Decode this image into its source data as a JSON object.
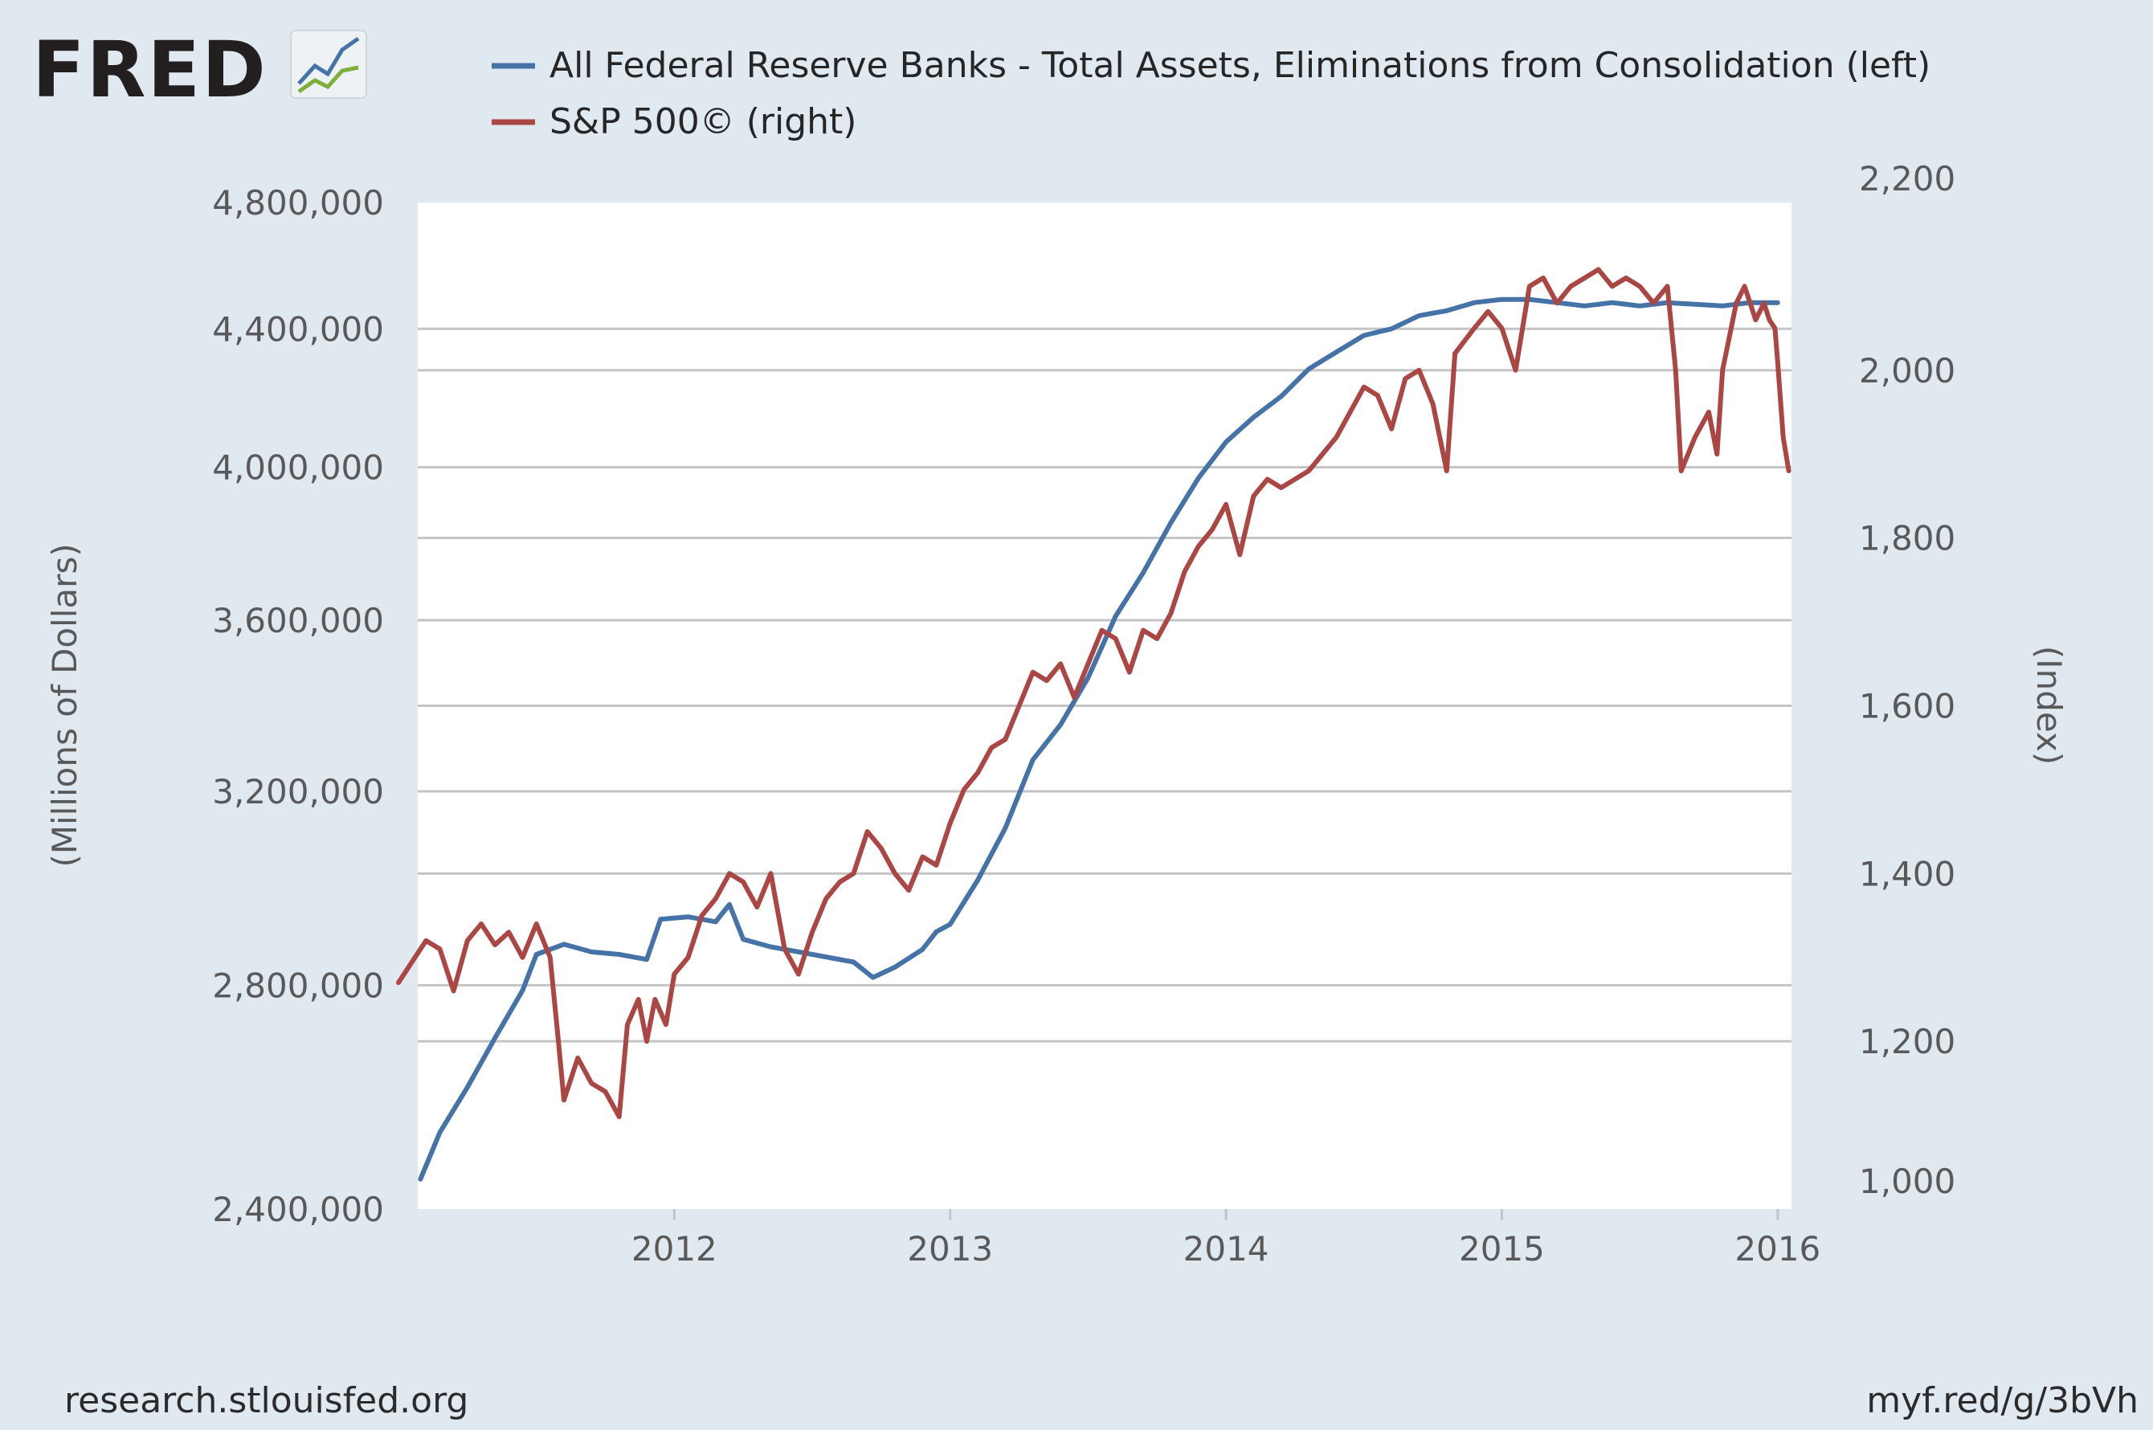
{
  "logo": {
    "text": "FRED"
  },
  "footer": {
    "source": "research.stlouisfed.org",
    "short_url": "myf.red/g/3bVh"
  },
  "colors": {
    "background": "#e1e9f0",
    "plot_bg": "#ffffff",
    "grid": "#c4c4c4",
    "series_assets": "#4572a7",
    "series_sp500": "#aa4643",
    "logo_dark": "#231f20"
  },
  "chart_data": {
    "type": "line",
    "title": "",
    "xlabel": "",
    "ylabel_left": "(Millions of Dollars)",
    "ylabel_right": "(Index)",
    "x_tick_labels": [
      "2012",
      "2013",
      "2014",
      "2015",
      "2016"
    ],
    "x_tick_years": [
      2012,
      2013,
      2014,
      2015,
      2016
    ],
    "xlim": [
      2011.07,
      2016.05
    ],
    "left_axis": {
      "ticks": [
        2400000,
        2800000,
        3200000,
        3600000,
        4000000,
        4400000,
        4800000
      ],
      "tick_labels": [
        "2,400,000",
        "2,800,000",
        "3,200,000",
        "3,600,000",
        "4,000,000",
        "4,400,000",
        "4,800,000"
      ],
      "scale": "log",
      "range": [
        2400000,
        4800000
      ]
    },
    "right_axis": {
      "ticks": [
        1000,
        1200,
        1400,
        1600,
        1800,
        2000,
        2200
      ],
      "tick_labels": [
        "1,000",
        "1,200",
        "1,400",
        "1,600",
        "1,800",
        "2,000",
        "2,200"
      ],
      "scale": "linear",
      "range": [
        1000,
        2200
      ]
    },
    "series": [
      {
        "name": "All Federal Reserve Banks - Total Assets, Eliminations from Consolidation (left)",
        "axis": "left",
        "points": [
          [
            2011.08,
            2450000
          ],
          [
            2011.15,
            2530000
          ],
          [
            2011.25,
            2610000
          ],
          [
            2011.35,
            2700000
          ],
          [
            2011.45,
            2790000
          ],
          [
            2011.5,
            2860000
          ],
          [
            2011.6,
            2880000
          ],
          [
            2011.7,
            2865000
          ],
          [
            2011.8,
            2860000
          ],
          [
            2011.9,
            2850000
          ],
          [
            2011.95,
            2930000
          ],
          [
            2012.05,
            2935000
          ],
          [
            2012.15,
            2925000
          ],
          [
            2012.2,
            2960000
          ],
          [
            2012.25,
            2890000
          ],
          [
            2012.35,
            2875000
          ],
          [
            2012.5,
            2860000
          ],
          [
            2012.65,
            2845000
          ],
          [
            2012.72,
            2815000
          ],
          [
            2012.8,
            2835000
          ],
          [
            2012.9,
            2870000
          ],
          [
            2012.95,
            2905000
          ],
          [
            2013.0,
            2920000
          ],
          [
            2013.1,
            3010000
          ],
          [
            2013.2,
            3120000
          ],
          [
            2013.3,
            3270000
          ],
          [
            2013.4,
            3350000
          ],
          [
            2013.5,
            3460000
          ],
          [
            2013.6,
            3610000
          ],
          [
            2013.7,
            3720000
          ],
          [
            2013.8,
            3850000
          ],
          [
            2013.9,
            3970000
          ],
          [
            2014.0,
            4070000
          ],
          [
            2014.1,
            4140000
          ],
          [
            2014.2,
            4200000
          ],
          [
            2014.3,
            4280000
          ],
          [
            2014.4,
            4330000
          ],
          [
            2014.5,
            4380000
          ],
          [
            2014.6,
            4400000
          ],
          [
            2014.7,
            4440000
          ],
          [
            2014.8,
            4455000
          ],
          [
            2014.9,
            4480000
          ],
          [
            2015.0,
            4490000
          ],
          [
            2015.1,
            4490000
          ],
          [
            2015.2,
            4480000
          ],
          [
            2015.3,
            4470000
          ],
          [
            2015.4,
            4480000
          ],
          [
            2015.5,
            4470000
          ],
          [
            2015.6,
            4480000
          ],
          [
            2015.7,
            4475000
          ],
          [
            2015.8,
            4470000
          ],
          [
            2015.9,
            4480000
          ],
          [
            2016.0,
            4480000
          ]
        ]
      },
      {
        "name": "S&P 500© (right)",
        "axis": "right",
        "points": [
          [
            2011.0,
            1270
          ],
          [
            2011.05,
            1295
          ],
          [
            2011.1,
            1320
          ],
          [
            2011.15,
            1310
          ],
          [
            2011.2,
            1260
          ],
          [
            2011.25,
            1320
          ],
          [
            2011.3,
            1340
          ],
          [
            2011.35,
            1315
          ],
          [
            2011.4,
            1330
          ],
          [
            2011.45,
            1300
          ],
          [
            2011.5,
            1340
          ],
          [
            2011.55,
            1300
          ],
          [
            2011.58,
            1200
          ],
          [
            2011.6,
            1130
          ],
          [
            2011.65,
            1180
          ],
          [
            2011.7,
            1150
          ],
          [
            2011.75,
            1140
          ],
          [
            2011.8,
            1110
          ],
          [
            2011.83,
            1220
          ],
          [
            2011.87,
            1250
          ],
          [
            2011.9,
            1200
          ],
          [
            2011.93,
            1250
          ],
          [
            2011.97,
            1220
          ],
          [
            2012.0,
            1280
          ],
          [
            2012.05,
            1300
          ],
          [
            2012.1,
            1350
          ],
          [
            2012.15,
            1370
          ],
          [
            2012.2,
            1400
          ],
          [
            2012.25,
            1390
          ],
          [
            2012.3,
            1360
          ],
          [
            2012.35,
            1400
          ],
          [
            2012.4,
            1310
          ],
          [
            2012.45,
            1280
          ],
          [
            2012.5,
            1330
          ],
          [
            2012.55,
            1370
          ],
          [
            2012.6,
            1390
          ],
          [
            2012.65,
            1400
          ],
          [
            2012.7,
            1450
          ],
          [
            2012.75,
            1430
          ],
          [
            2012.8,
            1400
          ],
          [
            2012.85,
            1380
          ],
          [
            2012.9,
            1420
          ],
          [
            2012.95,
            1410
          ],
          [
            2013.0,
            1460
          ],
          [
            2013.05,
            1500
          ],
          [
            2013.1,
            1520
          ],
          [
            2013.15,
            1550
          ],
          [
            2013.2,
            1560
          ],
          [
            2013.25,
            1600
          ],
          [
            2013.3,
            1640
          ],
          [
            2013.35,
            1630
          ],
          [
            2013.4,
            1650
          ],
          [
            2013.45,
            1610
          ],
          [
            2013.5,
            1650
          ],
          [
            2013.55,
            1690
          ],
          [
            2013.6,
            1680
          ],
          [
            2013.65,
            1640
          ],
          [
            2013.7,
            1690
          ],
          [
            2013.75,
            1680
          ],
          [
            2013.8,
            1710
          ],
          [
            2013.85,
            1760
          ],
          [
            2013.9,
            1790
          ],
          [
            2013.95,
            1810
          ],
          [
            2014.0,
            1840
          ],
          [
            2014.05,
            1780
          ],
          [
            2014.1,
            1850
          ],
          [
            2014.15,
            1870
          ],
          [
            2014.2,
            1860
          ],
          [
            2014.3,
            1880
          ],
          [
            2014.4,
            1920
          ],
          [
            2014.45,
            1950
          ],
          [
            2014.5,
            1980
          ],
          [
            2014.55,
            1970
          ],
          [
            2014.6,
            1930
          ],
          [
            2014.65,
            1990
          ],
          [
            2014.7,
            2000
          ],
          [
            2014.75,
            1960
          ],
          [
            2014.8,
            1880
          ],
          [
            2014.83,
            2020
          ],
          [
            2014.9,
            2050
          ],
          [
            2014.95,
            2070
          ],
          [
            2015.0,
            2050
          ],
          [
            2015.05,
            2000
          ],
          [
            2015.1,
            2100
          ],
          [
            2015.15,
            2110
          ],
          [
            2015.2,
            2080
          ],
          [
            2015.25,
            2100
          ],
          [
            2015.3,
            2110
          ],
          [
            2015.35,
            2120
          ],
          [
            2015.4,
            2100
          ],
          [
            2015.45,
            2110
          ],
          [
            2015.5,
            2100
          ],
          [
            2015.55,
            2080
          ],
          [
            2015.6,
            2100
          ],
          [
            2015.63,
            2000
          ],
          [
            2015.65,
            1880
          ],
          [
            2015.7,
            1920
          ],
          [
            2015.75,
            1950
          ],
          [
            2015.78,
            1900
          ],
          [
            2015.8,
            2000
          ],
          [
            2015.85,
            2080
          ],
          [
            2015.88,
            2100
          ],
          [
            2015.92,
            2060
          ],
          [
            2015.95,
            2080
          ],
          [
            2015.97,
            2060
          ],
          [
            2015.99,
            2050
          ],
          [
            2016.0,
            2010
          ],
          [
            2016.02,
            1920
          ],
          [
            2016.04,
            1880
          ]
        ]
      }
    ]
  }
}
